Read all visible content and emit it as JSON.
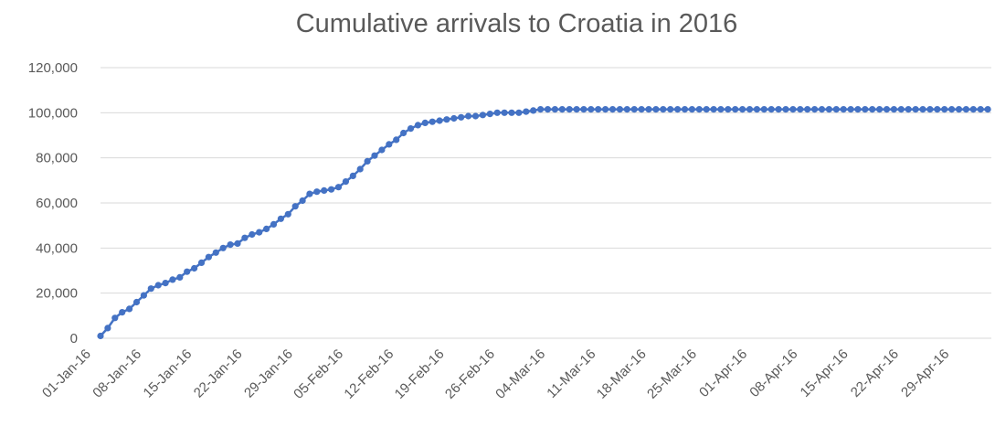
{
  "chart_data": {
    "type": "line",
    "title": "Cumulative arrivals to Croatia in 2016",
    "xlabel": "",
    "ylabel": "",
    "ylim": [
      0,
      120000
    ],
    "yticks": [
      "0",
      "20,000",
      "40,000",
      "60,000",
      "80,000",
      "100,000",
      "120,000"
    ],
    "xtick_labels": [
      "01-Jan-16",
      "08-Jan-16",
      "15-Jan-16",
      "22-Jan-16",
      "29-Jan-16",
      "05-Feb-16",
      "12-Feb-16",
      "19-Feb-16",
      "26-Feb-16",
      "04-Mar-16",
      "11-Mar-16",
      "18-Mar-16",
      "25-Mar-16",
      "01-Apr-16",
      "08-Apr-16",
      "15-Apr-16",
      "22-Apr-16",
      "29-Apr-16"
    ],
    "grid": true,
    "legend": "none",
    "series_color": "#4472c4",
    "series": [
      {
        "markers": true,
        "x": [
          "2016-01-01",
          "2016-01-02",
          "2016-01-03",
          "2016-01-04",
          "2016-01-05",
          "2016-01-06",
          "2016-01-07",
          "2016-01-08",
          "2016-01-09",
          "2016-01-10",
          "2016-01-11",
          "2016-01-12",
          "2016-01-13",
          "2016-01-14",
          "2016-01-15",
          "2016-01-16",
          "2016-01-17",
          "2016-01-18",
          "2016-01-19",
          "2016-01-20",
          "2016-01-21",
          "2016-01-22",
          "2016-01-23",
          "2016-01-24",
          "2016-01-25",
          "2016-01-26",
          "2016-01-27",
          "2016-01-28",
          "2016-01-29",
          "2016-01-30",
          "2016-01-31",
          "2016-02-01",
          "2016-02-02",
          "2016-02-03",
          "2016-02-04",
          "2016-02-05",
          "2016-02-06",
          "2016-02-07",
          "2016-02-08",
          "2016-02-09",
          "2016-02-10",
          "2016-02-11",
          "2016-02-12",
          "2016-02-13",
          "2016-02-14",
          "2016-02-15",
          "2016-02-16",
          "2016-02-17",
          "2016-02-18",
          "2016-02-19",
          "2016-02-20",
          "2016-02-21",
          "2016-02-22",
          "2016-02-23",
          "2016-02-24",
          "2016-02-25",
          "2016-02-26",
          "2016-02-27",
          "2016-02-28",
          "2016-02-29",
          "2016-03-01",
          "2016-03-02",
          "2016-03-03",
          "2016-03-04",
          "2016-03-05",
          "2016-03-06",
          "2016-03-07",
          "2016-03-08",
          "2016-03-09",
          "2016-03-10",
          "2016-03-11",
          "2016-03-12",
          "2016-03-13",
          "2016-03-14",
          "2016-03-15",
          "2016-03-16",
          "2016-03-17",
          "2016-03-18",
          "2016-03-19",
          "2016-03-20",
          "2016-03-21",
          "2016-03-22",
          "2016-03-23",
          "2016-03-24",
          "2016-03-25",
          "2016-03-26",
          "2016-03-27",
          "2016-03-28",
          "2016-03-29",
          "2016-03-30",
          "2016-03-31",
          "2016-04-01",
          "2016-04-02",
          "2016-04-03",
          "2016-04-04",
          "2016-04-05",
          "2016-04-06",
          "2016-04-07",
          "2016-04-08",
          "2016-04-09",
          "2016-04-10",
          "2016-04-11",
          "2016-04-12",
          "2016-04-13",
          "2016-04-14",
          "2016-04-15",
          "2016-04-16",
          "2016-04-17",
          "2016-04-18",
          "2016-04-19",
          "2016-04-20",
          "2016-04-21",
          "2016-04-22",
          "2016-04-23",
          "2016-04-24",
          "2016-04-25",
          "2016-04-26",
          "2016-04-27",
          "2016-04-28",
          "2016-04-29",
          "2016-04-30",
          "2016-05-01",
          "2016-05-02",
          "2016-05-03"
        ],
        "values": [
          1000,
          4500,
          9000,
          11500,
          13000,
          16000,
          19000,
          22000,
          23500,
          24500,
          26000,
          27000,
          29500,
          31000,
          33500,
          36000,
          38000,
          40000,
          41500,
          42000,
          44500,
          46000,
          47000,
          48500,
          50500,
          53000,
          55000,
          58500,
          61000,
          64000,
          65000,
          65500,
          66000,
          67000,
          69500,
          72000,
          75000,
          78500,
          81000,
          83500,
          86000,
          88000,
          91000,
          93000,
          94500,
          95500,
          96000,
          96500,
          97000,
          97500,
          98000,
          98500,
          98500,
          99000,
          99500,
          100000,
          100000,
          100000,
          100000,
          100500,
          101000,
          101500,
          101500,
          101500,
          101500,
          101500,
          101500,
          101500,
          101500,
          101500,
          101500,
          101500,
          101500,
          101500,
          101500,
          101500,
          101500,
          101500,
          101500,
          101500,
          101500,
          101500,
          101500,
          101500,
          101500,
          101500,
          101500,
          101500,
          101500,
          101500,
          101500,
          101500,
          101500,
          101500,
          101500,
          101500,
          101500,
          101500,
          101500,
          101500,
          101500,
          101500,
          101500,
          101500,
          101500,
          101500,
          101500,
          101500,
          101500,
          101500,
          101500,
          101500,
          101500,
          101500,
          101500,
          101500,
          101500,
          101500,
          101500,
          101500,
          101500,
          101500,
          101500,
          101500
        ]
      }
    ]
  }
}
